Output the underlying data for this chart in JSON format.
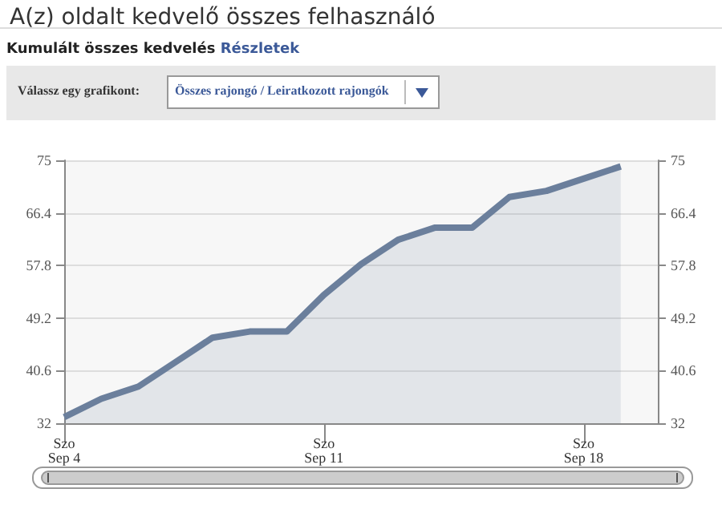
{
  "chart_data": {
    "type": "area",
    "title": "A(z) oldalt kedvelő összes felhasználó",
    "subtitle": "Kumulált összes kedvelés",
    "annotations": [
      "Részletek",
      "Válassz egy grafikont:",
      "Összes rajongó / Leiratkozott rajongók"
    ],
    "x": [
      "--09-04",
      "--09-05",
      "--09-06",
      "--09-07",
      "--09-08",
      "--09-09",
      "--09-10",
      "--09-11",
      "--09-12",
      "--09-13",
      "--09-14",
      "--09-15",
      "--09-16",
      "--09-17",
      "--09-18",
      "--09-19"
    ],
    "series": [
      {
        "color": "#6b7f9c",
        "values": [
          33,
          36,
          38,
          42,
          46,
          47,
          47,
          53,
          58,
          62,
          64,
          64,
          69,
          70,
          72,
          74
        ]
      }
    ],
    "xlim": [
      "--09-04",
      "--09-20"
    ],
    "xticks": [
      {
        "value": "--09-04",
        "label": "Szo\nSep 4"
      },
      {
        "value": "--09-11",
        "label": "Szo\nSep 11"
      },
      {
        "value": "--09-18",
        "label": "Szo\nSep 18"
      }
    ],
    "ylim": [
      32,
      75
    ],
    "yticks": [
      32,
      40.6,
      49.2,
      57.8,
      66.4,
      75
    ],
    "y2lim": [
      32,
      75
    ],
    "y2ticks": [
      32,
      40.6,
      49.2,
      57.8,
      66.4,
      75
    ],
    "grid": "y",
    "marker": "none"
  }
}
